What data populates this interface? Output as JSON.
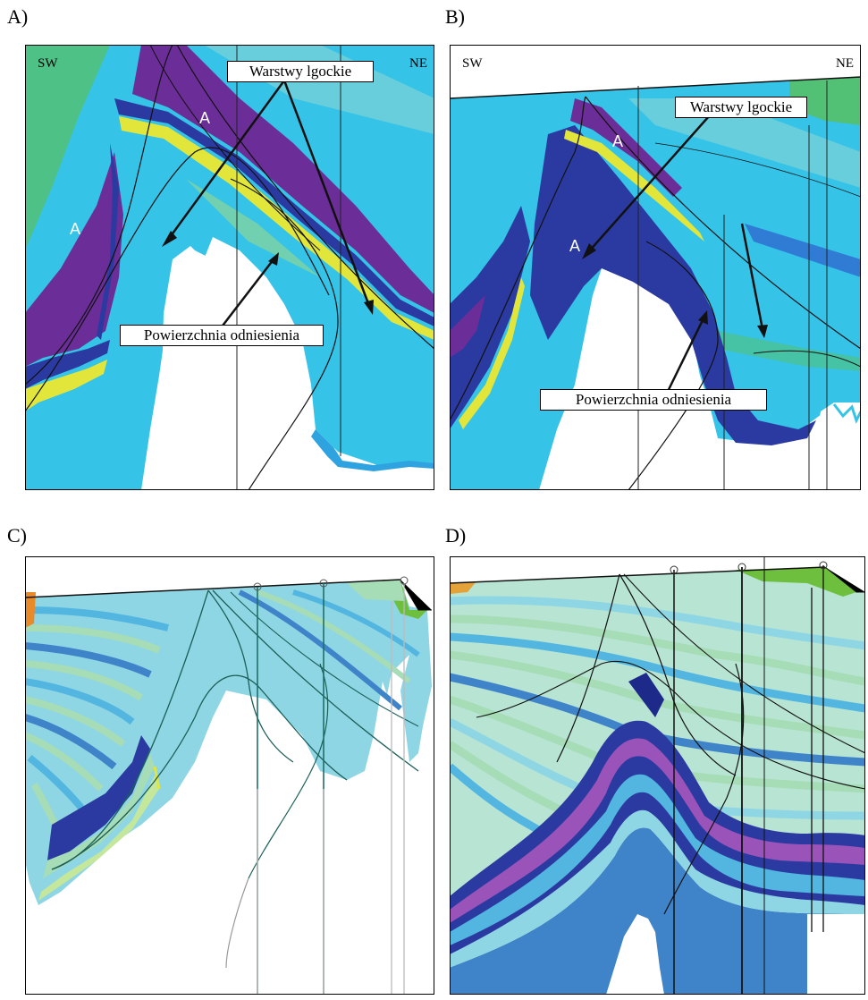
{
  "figure": {
    "panels": [
      {
        "id": "A",
        "label": "A)",
        "orientation": {
          "left": "SW",
          "right": "NE"
        },
        "callouts": {
          "top": "Warstwy lgockie",
          "bottom": "Powierzchnia  odniesienia"
        },
        "markers": [
          "A",
          "A"
        ]
      },
      {
        "id": "B",
        "label": "B)",
        "orientation": {
          "left": "SW",
          "right": "NE"
        },
        "callouts": {
          "top": "Warstwy lgockie",
          "bottom": "Powierzchnia  odniesienia"
        },
        "markers": [
          "A",
          "A"
        ]
      },
      {
        "id": "C",
        "label": "C)"
      },
      {
        "id": "D",
        "label": "D)"
      }
    ],
    "colors": {
      "purple": "#6b2d97",
      "navy": "#2b3aa0",
      "cyan": "#36c3e8",
      "teal": "#34b3a8",
      "green": "#52c176",
      "light_blue": "#8fd6e4",
      "pastel_green": "#a6dcb6",
      "yellow": "#e3e63a",
      "magenta": "#9a53b8",
      "deep_blue": "#3f83c9"
    }
  }
}
